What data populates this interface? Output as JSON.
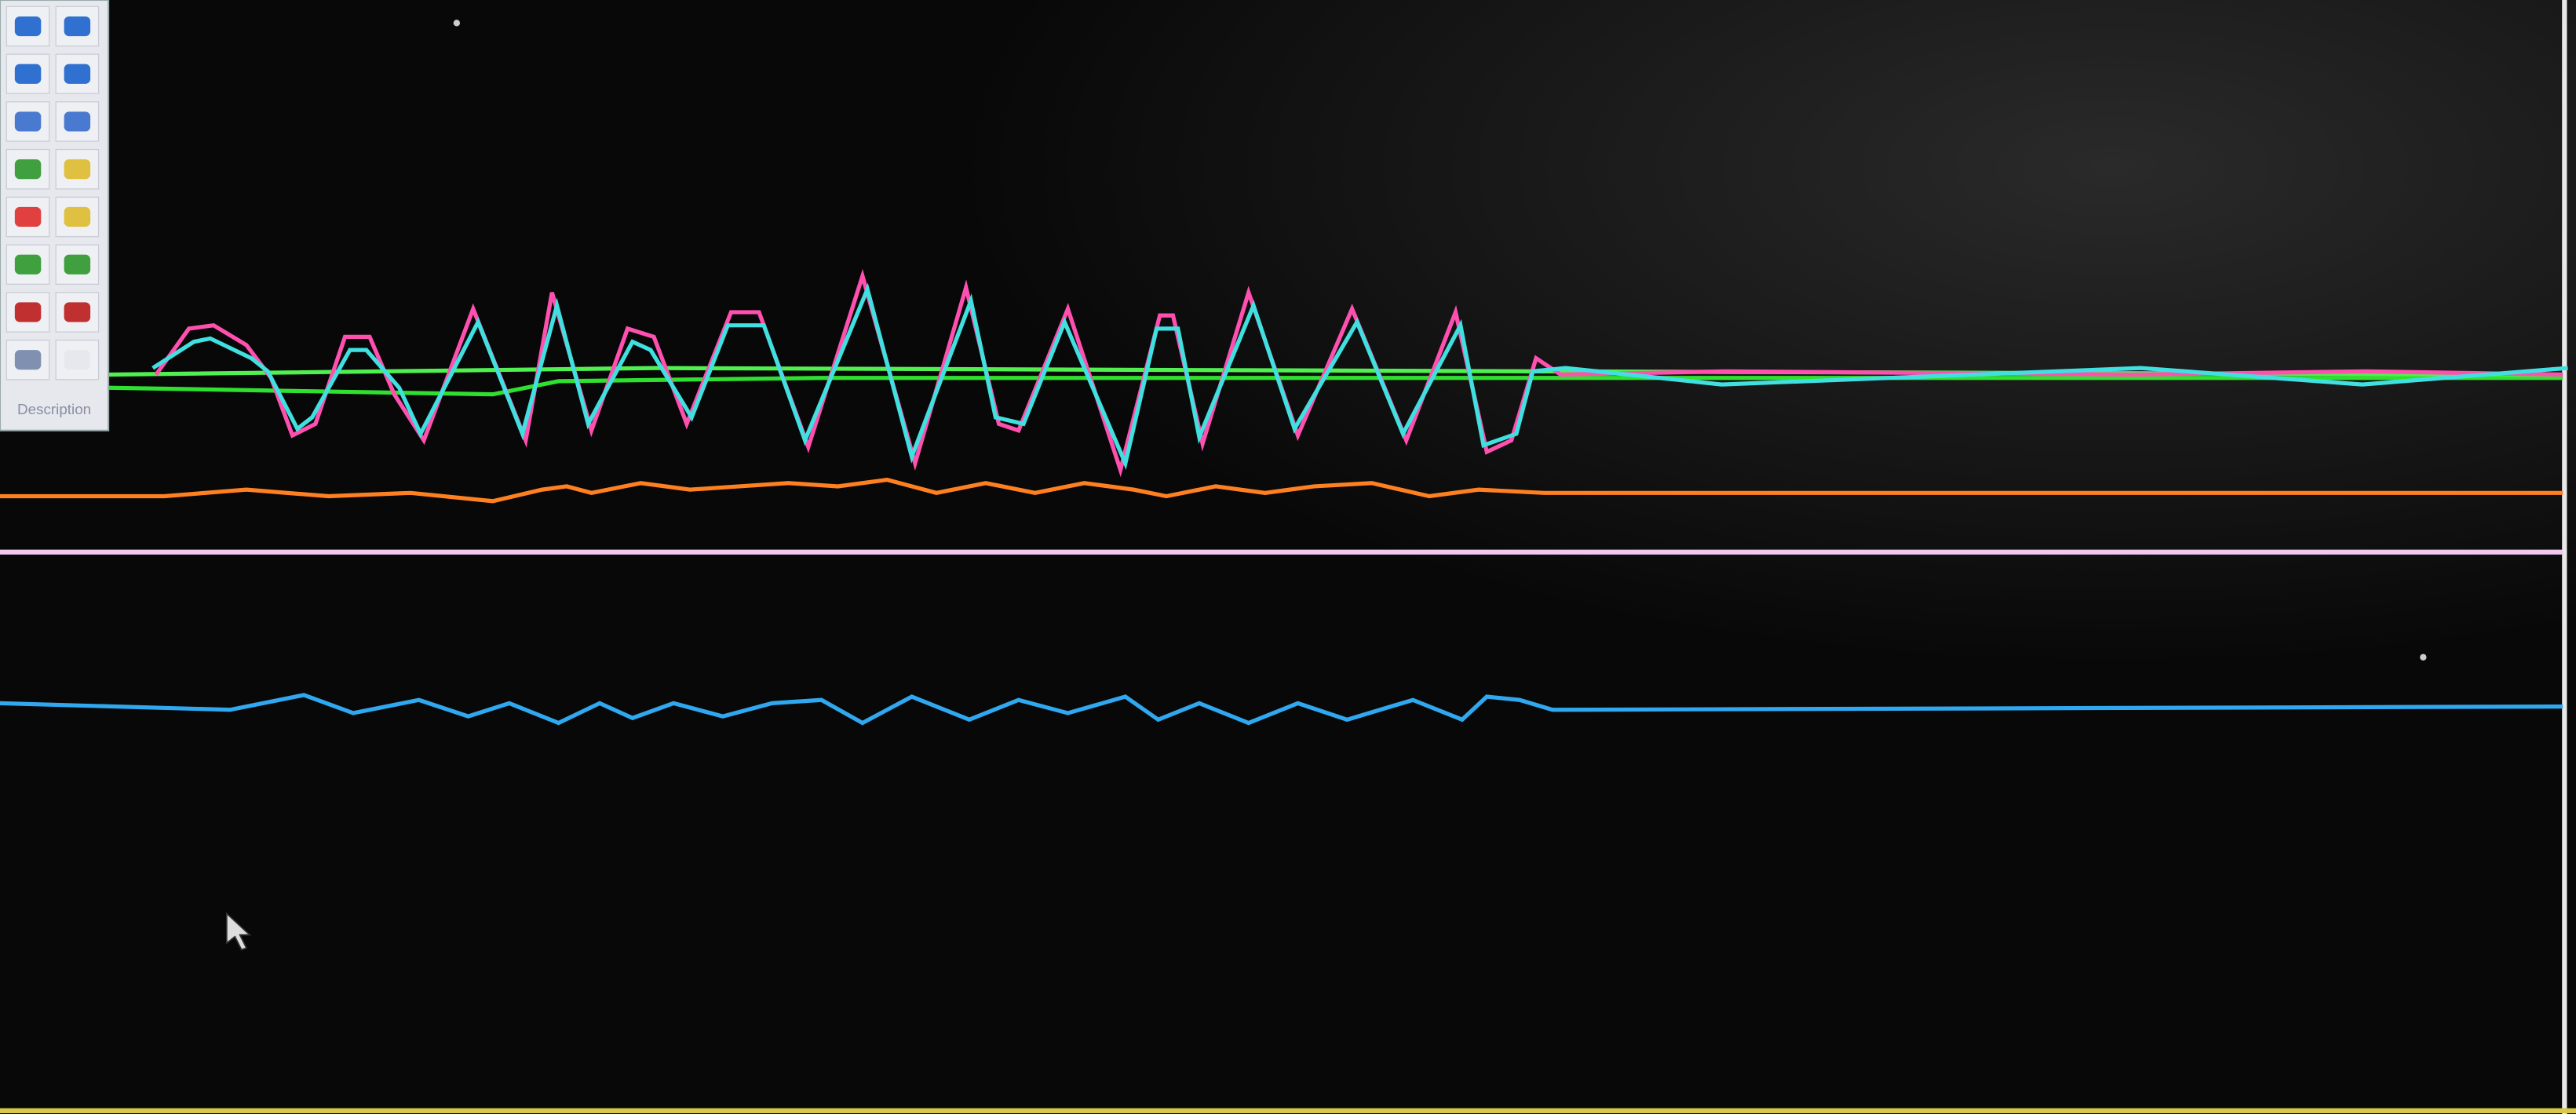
{
  "toolbar": {
    "label": "Description"
  }
}
